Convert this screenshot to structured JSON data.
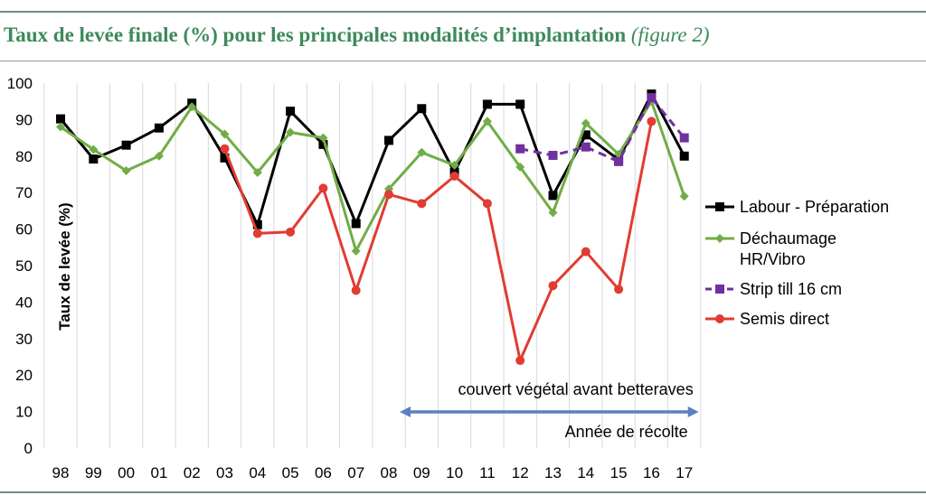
{
  "title": {
    "main": "Taux de levée finale (%) pour les principales modalités d’implantation",
    "sub": "(figure 2)"
  },
  "chart_data": {
    "type": "line",
    "categories": [
      "98",
      "99",
      "00",
      "01",
      "02",
      "03",
      "04",
      "05",
      "06",
      "07",
      "08",
      "09",
      "10",
      "11",
      "12",
      "13",
      "14",
      "15",
      "16",
      "17"
    ],
    "ylabel": "Taux de levée (%)",
    "ylim": [
      0,
      100
    ],
    "yticks": [
      0,
      10,
      20,
      30,
      40,
      50,
      60,
      70,
      80,
      90,
      100
    ],
    "grid": "vertical",
    "legend_position": "right",
    "series": [
      {
        "name": "Labour - Préparation",
        "color": "#000000",
        "marker": "square",
        "dash": "solid",
        "values": [
          90.2,
          79.2,
          83,
          87.7,
          94.5,
          79.5,
          61.2,
          92.3,
          83.2,
          61.5,
          84.3,
          93,
          75.5,
          94.2,
          94.2,
          69.2,
          85.8,
          79,
          97,
          80
        ]
      },
      {
        "name": "Déchaumage HR/Vibro",
        "color": "#70ad47",
        "marker": "diamond",
        "dash": "solid",
        "values": [
          88,
          81.8,
          76,
          80,
          93.5,
          86,
          75.5,
          86.5,
          85,
          54,
          71,
          81,
          77.5,
          89.5,
          77,
          64.5,
          89,
          80.5,
          95,
          69
        ]
      },
      {
        "name": "Strip till 16 cm",
        "color": "#7030a0",
        "marker": "square",
        "dash": "dash",
        "values": [
          null,
          null,
          null,
          null,
          null,
          null,
          null,
          null,
          null,
          null,
          null,
          null,
          null,
          null,
          82,
          80.2,
          82.5,
          78.5,
          96,
          85
        ]
      },
      {
        "name": "Semis direct",
        "color": "#e03c31",
        "marker": "circle",
        "dash": "solid",
        "values": [
          null,
          null,
          null,
          null,
          null,
          82,
          58.8,
          59.2,
          71.2,
          43.2,
          69.5,
          67,
          74.5,
          67,
          24,
          44.5,
          53.8,
          43.5,
          89.5,
          null
        ]
      }
    ],
    "annotations": {
      "label_above": "couvert végétal avant betteraves",
      "label_below": "Année de récolte",
      "arrow_from": "08",
      "arrow_to": "17",
      "arrow_color": "#5b7fc4"
    }
  }
}
